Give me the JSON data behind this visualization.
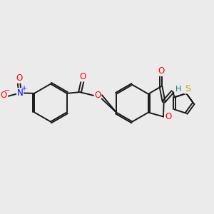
{
  "background_color": "#ebebeb",
  "bond_color": "#1a1a1a",
  "bond_width": 1.4,
  "atom_colors": {
    "O": "#ff0000",
    "N": "#0000ff",
    "S": "#ccaa00",
    "H": "#008080",
    "C": "#1a1a1a"
  },
  "font_size_atom": 8.5,
  "xlim": [
    0,
    10
  ],
  "ylim": [
    0,
    10
  ]
}
